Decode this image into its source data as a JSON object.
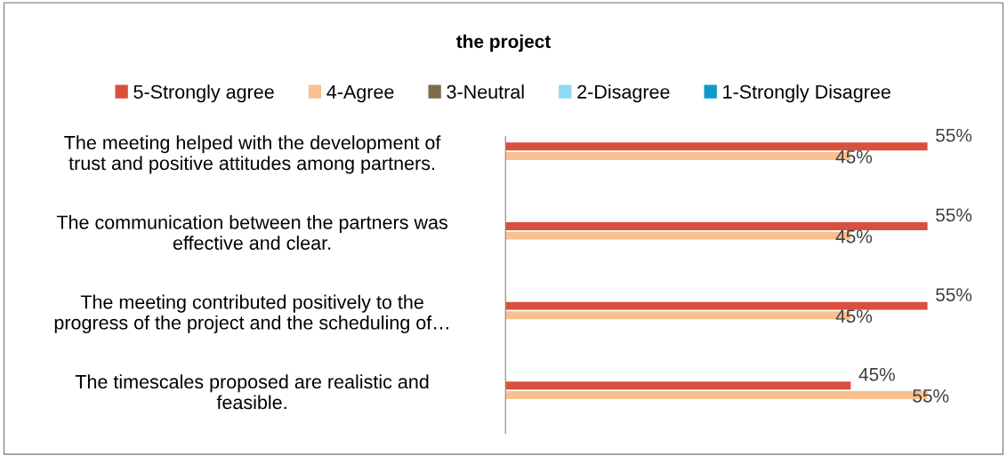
{
  "chart_data": {
    "type": "bar",
    "orientation": "horizontal",
    "title": "the project",
    "categories": [
      "The meeting helped with the development of\ntrust and positive attitudes among partners.",
      "The communication between the partners was\neffective and clear.",
      "The meeting contributed positively to the\nprogress of the project and the scheduling of…",
      "The timescales proposed are realistic and\nfeasible."
    ],
    "series": [
      {
        "name": "5-Strongly agree",
        "color": "#d9503c",
        "values": [
          55,
          55,
          55,
          45
        ],
        "value_labels": [
          "55%",
          "55%",
          "55%",
          "45%"
        ]
      },
      {
        "name": "4-Agree",
        "color": "#f8c18f",
        "values": [
          45,
          45,
          45,
          55
        ],
        "value_labels": [
          "45%",
          "45%",
          "45%",
          "55%"
        ]
      },
      {
        "name": "3-Neutral",
        "color": "#7f6b50",
        "values": [
          0,
          0,
          0,
          0
        ]
      },
      {
        "name": "2-Disagree",
        "color": "#8fd9f7",
        "values": [
          0,
          0,
          0,
          0
        ]
      },
      {
        "name": "1-Strongly Disagree",
        "color": "#0f99c6",
        "values": [
          0,
          0,
          0,
          0
        ]
      }
    ],
    "legend": "top",
    "grid": false,
    "tick_labels": "y"
  }
}
